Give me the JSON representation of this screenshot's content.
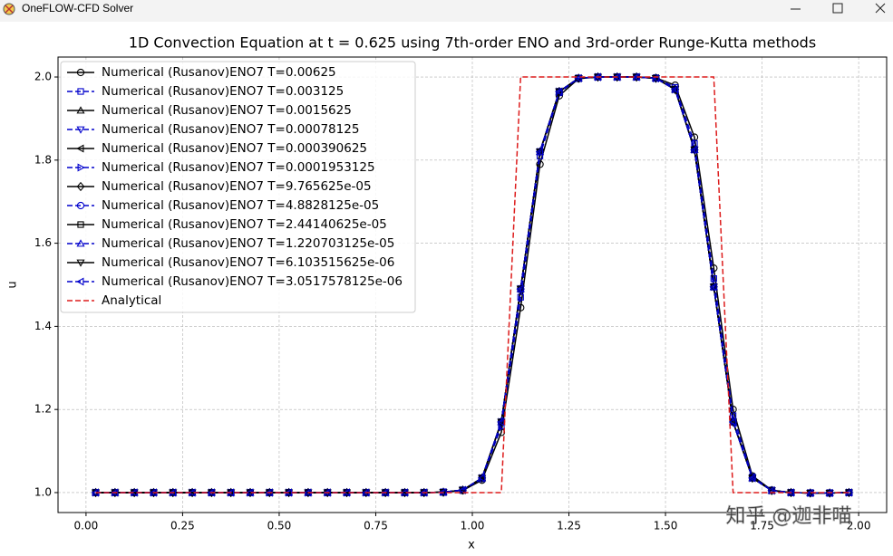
{
  "window_title": "OneFLOW-CFD Solver",
  "chart_data": {
    "type": "line",
    "title": "1D Convection Equation at t = 0.625 using 7th-order ENO and 3rd-order Runge-Kutta methods",
    "x_label": "x",
    "y_label": "u",
    "watermark": "知乎 @迦非喵",
    "grid": true,
    "legend": "upper left",
    "xlim": [
      -0.0725,
      2.0725
    ],
    "xticks": [
      {
        "value": 0,
        "label": "0.00"
      },
      0.25,
      {
        "value": 0.5,
        "label": "0.50"
      },
      0.75,
      {
        "value": 1,
        "label": "1.00"
      },
      1.25,
      {
        "value": 1.5,
        "label": "1.50"
      },
      1.75,
      {
        "value": 2,
        "label": "2.00"
      }
    ],
    "ylim": [
      0.952,
      2.048
    ],
    "yticks": [
      {
        "value": 1,
        "label": "1.0"
      },
      1.2,
      1.4,
      1.6,
      1.8,
      {
        "value": 2,
        "label": "2.0"
      }
    ],
    "x": [
      0.025,
      0.075,
      0.125,
      0.175,
      0.225,
      0.275,
      0.325,
      0.375,
      0.425,
      0.475,
      0.525,
      0.575,
      0.625,
      0.675,
      0.725,
      0.775,
      0.825,
      0.875,
      0.925,
      0.975,
      1.025,
      1.075,
      1.125,
      1.175,
      1.225,
      1.275,
      1.325,
      1.375,
      1.425,
      1.475,
      1.525,
      1.575,
      1.625,
      1.675,
      1.725,
      1.775,
      1.825,
      1.875,
      1.925,
      1.975
    ],
    "series": [
      {
        "name": "Numerical (Rusanov)ENO7 T=0.00625",
        "color": "#000000",
        "linestyle": "solid",
        "marker": "circle",
        "values": [
          1,
          1,
          1,
          1,
          1,
          1,
          1,
          1,
          1,
          1,
          1,
          1,
          1,
          1,
          1,
          1,
          1,
          1,
          1.001,
          1.005,
          1.03,
          1.145,
          1.445,
          1.79,
          1.955,
          1.996,
          2,
          2,
          2,
          1.998,
          1.98,
          1.855,
          1.54,
          1.2,
          1.04,
          1.006,
          1,
          0.999,
          0.999,
          1
        ]
      },
      {
        "name": "Numerical (Rusanov)ENO7 T=0.003125",
        "color": "#0000cc",
        "linestyle": "dashed",
        "marker": "square",
        "values": [
          1,
          1,
          1,
          1,
          1,
          1,
          1,
          1,
          1,
          1,
          1,
          1,
          1,
          1,
          1,
          1,
          1,
          1,
          1.001,
          1.006,
          1.033,
          1.16,
          1.47,
          1.81,
          1.962,
          1.997,
          2,
          2,
          2,
          1.997,
          1.975,
          1.84,
          1.515,
          1.185,
          1.038,
          1.005,
          1,
          0.999,
          0.999,
          1
        ]
      },
      {
        "name": "Numerical (Rusanov)ENO7 T=0.0015625",
        "color": "#000000",
        "linestyle": "solid",
        "marker": "triangle-up",
        "values": [
          1,
          1,
          1,
          1,
          1,
          1,
          1,
          1,
          1,
          1,
          1,
          1,
          1,
          1,
          1,
          1,
          1,
          1,
          1.001,
          1.006,
          1.035,
          1.17,
          1.49,
          1.82,
          1.965,
          1.997,
          2,
          2,
          2,
          1.997,
          1.97,
          1.825,
          1.495,
          1.17,
          1.035,
          1.005,
          1,
          0.999,
          0.999,
          1
        ]
      },
      {
        "name": "Numerical (Rusanov)ENO7 T=0.00078125",
        "color": "#0000cc",
        "linestyle": "dashed",
        "marker": "triangle-down",
        "values": [
          1,
          1,
          1,
          1,
          1,
          1,
          1,
          1,
          1,
          1,
          1,
          1,
          1,
          1,
          1,
          1,
          1,
          1,
          1.001,
          1.006,
          1.035,
          1.17,
          1.49,
          1.82,
          1.965,
          1.997,
          2,
          2,
          2,
          1.997,
          1.97,
          1.825,
          1.495,
          1.17,
          1.035,
          1.005,
          1,
          0.999,
          0.999,
          1
        ]
      },
      {
        "name": "Numerical (Rusanov)ENO7 T=0.000390625",
        "color": "#000000",
        "linestyle": "solid",
        "marker": "triangle-left",
        "values": [
          1,
          1,
          1,
          1,
          1,
          1,
          1,
          1,
          1,
          1,
          1,
          1,
          1,
          1,
          1,
          1,
          1,
          1,
          1.001,
          1.006,
          1.035,
          1.17,
          1.49,
          1.82,
          1.965,
          1.997,
          2,
          2,
          2,
          1.997,
          1.97,
          1.825,
          1.495,
          1.17,
          1.035,
          1.005,
          1,
          0.999,
          0.999,
          1
        ]
      },
      {
        "name": "Numerical (Rusanov)ENO7 T=0.0001953125",
        "color": "#0000cc",
        "linestyle": "dashed",
        "marker": "triangle-right",
        "values": [
          1,
          1,
          1,
          1,
          1,
          1,
          1,
          1,
          1,
          1,
          1,
          1,
          1,
          1,
          1,
          1,
          1,
          1,
          1.001,
          1.006,
          1.035,
          1.17,
          1.49,
          1.82,
          1.965,
          1.997,
          2,
          2,
          2,
          1.997,
          1.97,
          1.825,
          1.495,
          1.17,
          1.035,
          1.005,
          1,
          0.999,
          0.999,
          1
        ]
      },
      {
        "name": "Numerical (Rusanov)ENO7 T=9.765625e-05",
        "color": "#000000",
        "linestyle": "solid",
        "marker": "diamond",
        "values": [
          1,
          1,
          1,
          1,
          1,
          1,
          1,
          1,
          1,
          1,
          1,
          1,
          1,
          1,
          1,
          1,
          1,
          1,
          1.001,
          1.006,
          1.035,
          1.17,
          1.49,
          1.82,
          1.965,
          1.997,
          2,
          2,
          2,
          1.997,
          1.97,
          1.825,
          1.495,
          1.17,
          1.035,
          1.005,
          1,
          0.999,
          0.999,
          1
        ]
      },
      {
        "name": "Numerical (Rusanov)ENO7 T=4.8828125e-05",
        "color": "#0000cc",
        "linestyle": "dashed",
        "marker": "circle",
        "values": [
          1,
          1,
          1,
          1,
          1,
          1,
          1,
          1,
          1,
          1,
          1,
          1,
          1,
          1,
          1,
          1,
          1,
          1,
          1.001,
          1.006,
          1.035,
          1.17,
          1.49,
          1.82,
          1.965,
          1.997,
          2,
          2,
          2,
          1.997,
          1.97,
          1.825,
          1.495,
          1.17,
          1.035,
          1.005,
          1,
          0.999,
          0.999,
          1
        ]
      },
      {
        "name": "Numerical (Rusanov)ENO7 T=2.44140625e-05",
        "color": "#000000",
        "linestyle": "solid",
        "marker": "square",
        "values": [
          1,
          1,
          1,
          1,
          1,
          1,
          1,
          1,
          1,
          1,
          1,
          1,
          1,
          1,
          1,
          1,
          1,
          1,
          1.001,
          1.006,
          1.035,
          1.17,
          1.49,
          1.82,
          1.965,
          1.997,
          2,
          2,
          2,
          1.997,
          1.97,
          1.825,
          1.495,
          1.17,
          1.035,
          1.005,
          1,
          0.999,
          0.999,
          1
        ]
      },
      {
        "name": "Numerical (Rusanov)ENO7 T=1.220703125e-05",
        "color": "#0000cc",
        "linestyle": "dashed",
        "marker": "triangle-up",
        "values": [
          1,
          1,
          1,
          1,
          1,
          1,
          1,
          1,
          1,
          1,
          1,
          1,
          1,
          1,
          1,
          1,
          1,
          1,
          1.001,
          1.006,
          1.035,
          1.17,
          1.49,
          1.82,
          1.965,
          1.997,
          2,
          2,
          2,
          1.997,
          1.97,
          1.825,
          1.495,
          1.17,
          1.035,
          1.005,
          1,
          0.999,
          0.999,
          1
        ]
      },
      {
        "name": "Numerical (Rusanov)ENO7 T=6.103515625e-06",
        "color": "#000000",
        "linestyle": "solid",
        "marker": "triangle-down",
        "values": [
          1,
          1,
          1,
          1,
          1,
          1,
          1,
          1,
          1,
          1,
          1,
          1,
          1,
          1,
          1,
          1,
          1,
          1,
          1.001,
          1.006,
          1.035,
          1.17,
          1.49,
          1.82,
          1.965,
          1.997,
          2,
          2,
          2,
          1.997,
          1.97,
          1.825,
          1.495,
          1.17,
          1.035,
          1.005,
          1,
          0.999,
          0.999,
          1
        ]
      },
      {
        "name": "Numerical (Rusanov)ENO7 T=3.0517578125e-06",
        "color": "#0000cc",
        "linestyle": "dashed",
        "marker": "triangle-left",
        "values": [
          1,
          1,
          1,
          1,
          1,
          1,
          1,
          1,
          1,
          1,
          1,
          1,
          1,
          1,
          1,
          1,
          1,
          1,
          1.001,
          1.006,
          1.035,
          1.17,
          1.49,
          1.82,
          1.965,
          1.997,
          2,
          2,
          2,
          1.997,
          1.97,
          1.825,
          1.495,
          1.17,
          1.035,
          1.005,
          1,
          0.999,
          0.999,
          1
        ]
      },
      {
        "name": "Analytical",
        "color": "#dd1c1c",
        "linestyle": "dashed",
        "values": [
          1,
          1,
          1,
          1,
          1,
          1,
          1,
          1,
          1,
          1,
          1,
          1,
          1,
          1,
          1,
          1,
          1,
          1,
          1,
          1,
          1,
          1,
          2,
          2,
          2,
          2,
          2,
          2,
          2,
          2,
          2,
          2,
          2,
          1,
          1,
          1,
          1,
          1,
          1,
          1
        ]
      }
    ]
  }
}
